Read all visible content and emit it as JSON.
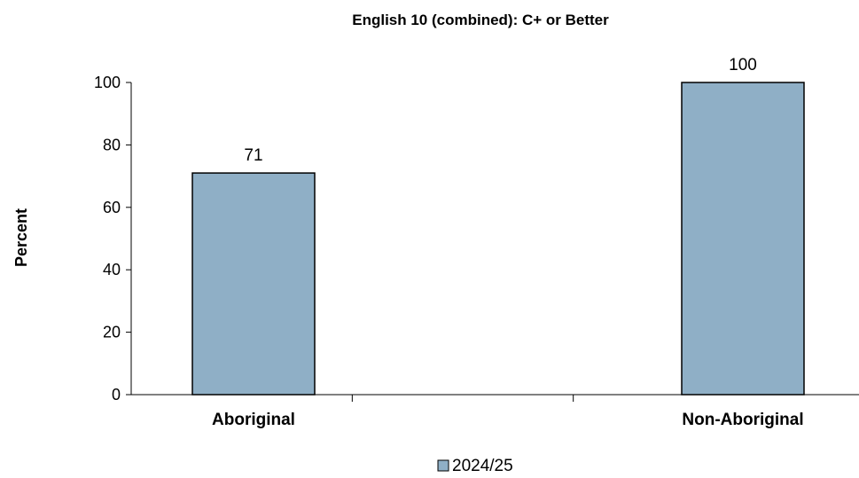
{
  "chart_data": {
    "type": "bar",
    "title": "English 10 (combined): C+ or Better",
    "xlabel": "",
    "ylabel": "Percent",
    "categories": [
      "Aboriginal",
      "Non-Aboriginal"
    ],
    "series": [
      {
        "name": "2024/25",
        "values": [
          71,
          100
        ],
        "color": "#8FAFC6"
      }
    ],
    "data_labels": [
      "71",
      "100"
    ],
    "ylim": [
      0,
      100
    ],
    "yticks": [
      0,
      20,
      40,
      60,
      80,
      100
    ],
    "grid": false,
    "legend_position": "bottom"
  }
}
